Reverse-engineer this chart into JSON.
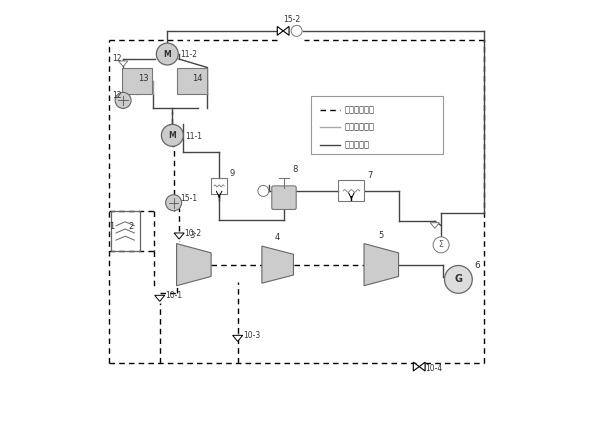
{
  "bg_color": "#ffffff",
  "steam_color": "#000000",
  "molten_color": "#aaaaaa",
  "water_color": "#444444",
  "component_fill": "#cccccc",
  "component_edge": "#666666",
  "legend_items": [
    {
      "label": "蒸汽循环线路",
      "style": "dashed",
      "color": "#000000"
    },
    {
      "label": "熔盐循环路线",
      "style": "solid",
      "color": "#aaaaaa"
    },
    {
      "label": "水循环路线",
      "style": "solid",
      "color": "#444444"
    }
  ]
}
